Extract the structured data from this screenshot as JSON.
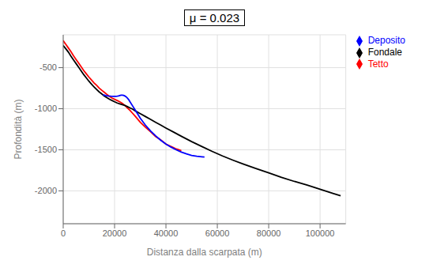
{
  "chart_data": {
    "type": "line",
    "title": "μ = 0.023",
    "xlabel": "Distanza dalla scarpata (m)",
    "ylabel": "Profondità (m)",
    "xlim": [
      0,
      110000
    ],
    "ylim": [
      -2400,
      -100
    ],
    "xticks": [
      0,
      20000,
      40000,
      60000,
      80000,
      100000
    ],
    "yticks": [
      -2000,
      -1500,
      -1000,
      -500
    ],
    "grid": true,
    "legend": "upper right",
    "marker": "diamond",
    "series": [
      {
        "name": "Tetto",
        "color": "#ff0000",
        "x": [
          0,
          500,
          1000,
          2000,
          3000,
          4000,
          5000,
          6000,
          7000,
          8000,
          9000,
          10000,
          11000,
          12000,
          13000,
          14000,
          15000,
          16000,
          17000,
          18000,
          19000,
          20000,
          21000,
          22000,
          23000,
          24000,
          25000,
          26000,
          27000,
          28000,
          30000,
          32000,
          34000,
          36000,
          38000,
          40000,
          42000,
          43000,
          44000,
          45000,
          46000
        ],
        "values": [
          -170,
          -195,
          -215,
          -260,
          -305,
          -355,
          -400,
          -445,
          -490,
          -535,
          -575,
          -615,
          -650,
          -685,
          -715,
          -748,
          -775,
          -800,
          -825,
          -850,
          -870,
          -885,
          -900,
          -915,
          -935,
          -960,
          -990,
          -1020,
          -1055,
          -1090,
          -1165,
          -1225,
          -1280,
          -1340,
          -1380,
          -1430,
          -1460,
          -1475,
          -1490,
          -1500,
          -1510
        ]
      },
      {
        "name": "Fondale",
        "color": "#000000",
        "x": [
          0,
          1000,
          2000,
          3000,
          4000,
          5000,
          6000,
          7000,
          8000,
          9000,
          10000,
          11000,
          12000,
          13000,
          14000,
          15000,
          16000,
          17000,
          18000,
          19000,
          20000,
          21000,
          22000,
          23000,
          24000,
          25000,
          26000,
          27000,
          28000,
          30000,
          32000,
          34000,
          36000,
          38000,
          40000,
          43000,
          46000,
          50000,
          54000,
          58000,
          62000,
          66000,
          70000,
          75000,
          80000,
          85000,
          90000,
          95000,
          100000,
          105000,
          108000
        ],
        "values": [
          -230,
          -270,
          -310,
          -360,
          -405,
          -450,
          -495,
          -540,
          -585,
          -625,
          -665,
          -700,
          -735,
          -765,
          -795,
          -820,
          -845,
          -865,
          -885,
          -900,
          -915,
          -930,
          -940,
          -950,
          -960,
          -975,
          -990,
          -1005,
          -1025,
          -1060,
          -1095,
          -1130,
          -1165,
          -1200,
          -1235,
          -1285,
          -1335,
          -1400,
          -1460,
          -1520,
          -1575,
          -1625,
          -1672,
          -1727,
          -1780,
          -1835,
          -1885,
          -1930,
          -1980,
          -2030,
          -2060
        ]
      },
      {
        "name": "Deposito",
        "color": "#0000ff",
        "x": [
          15500,
          16500,
          17500,
          18500,
          19500,
          20000,
          20500,
          21000,
          21500,
          22000,
          22500,
          23000,
          23500,
          24000,
          24500,
          25000,
          25500,
          26000,
          27000,
          28000,
          29000,
          30000,
          32000,
          34000,
          36000,
          38000,
          40000,
          42000,
          44000,
          46000,
          48000,
          50000,
          52000,
          54000,
          55000
        ],
        "values": [
          -830,
          -840,
          -845,
          -848,
          -850,
          -850,
          -849,
          -848,
          -845,
          -840,
          -835,
          -835,
          -838,
          -845,
          -855,
          -870,
          -890,
          -915,
          -965,
          -1015,
          -1065,
          -1115,
          -1200,
          -1270,
          -1330,
          -1385,
          -1430,
          -1468,
          -1500,
          -1528,
          -1550,
          -1568,
          -1578,
          -1585,
          -1588
        ]
      }
    ]
  }
}
